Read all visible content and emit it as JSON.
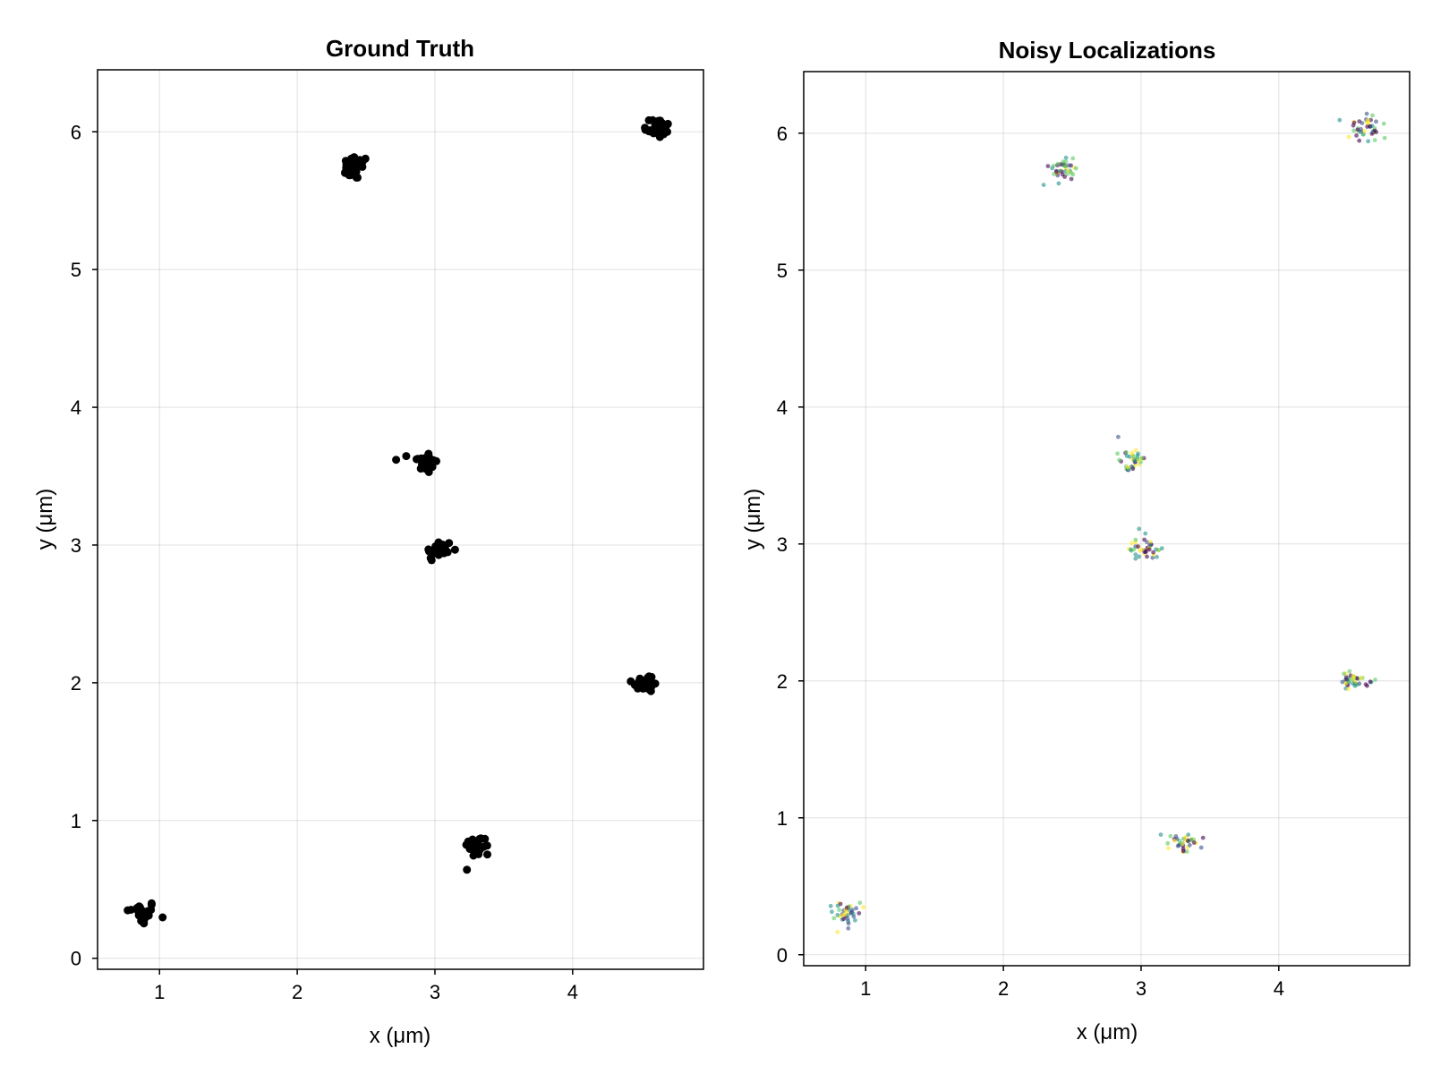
{
  "figure": {
    "panels": [
      {
        "title": "Ground Truth",
        "xlabel": "x (μm)",
        "ylabel": "y (μm)",
        "xlim": [
          0.55,
          4.95
        ],
        "ylim": [
          -0.08,
          6.45
        ],
        "xticks": [
          1,
          2,
          3,
          4
        ],
        "yticks": [
          0,
          1,
          2,
          3,
          4,
          5,
          6
        ],
        "marker_color": "#000000"
      },
      {
        "title": "Noisy Localizations",
        "xlabel": "x (μm)",
        "ylabel": "y (μm)",
        "xlim": [
          0.55,
          4.95
        ],
        "ylim": [
          -0.08,
          6.45
        ],
        "xticks": [
          1,
          2,
          3,
          4
        ],
        "yticks": [
          0,
          1,
          2,
          3,
          4,
          5,
          6
        ],
        "colormap": [
          "#440154",
          "#3b528b",
          "#21918c",
          "#5ec962",
          "#fde725"
        ],
        "marker_opacity": 0.6
      }
    ]
  },
  "chart_data": [
    {
      "type": "scatter",
      "title": "Ground Truth",
      "xlabel": "x (μm)",
      "ylabel": "y (μm)",
      "xlim": [
        0.55,
        4.95
      ],
      "ylim": [
        -0.08,
        6.45
      ],
      "grid": true,
      "clusters": [
        {
          "center": [
            0.87,
            0.33
          ],
          "spread": [
            0.11,
            0.09
          ],
          "points": 26
        },
        {
          "center": [
            2.42,
            5.74
          ],
          "spread": [
            0.1,
            0.09
          ],
          "points": 26
        },
        {
          "center": [
            4.62,
            6.03
          ],
          "spread": [
            0.1,
            0.08
          ],
          "points": 28
        },
        {
          "center": [
            2.92,
            3.6
          ],
          "spread": [
            0.1,
            0.08
          ],
          "points": 26
        },
        {
          "center": [
            3.03,
            2.96
          ],
          "spread": [
            0.1,
            0.08
          ],
          "points": 26
        },
        {
          "center": [
            4.53,
            2.0
          ],
          "spread": [
            0.1,
            0.07
          ],
          "points": 28
        },
        {
          "center": [
            3.31,
            0.81
          ],
          "spread": [
            0.1,
            0.08
          ],
          "points": 26
        }
      ]
    },
    {
      "type": "scatter",
      "title": "Noisy Localizations",
      "xlabel": "x (μm)",
      "ylabel": "y (μm)",
      "xlim": [
        0.55,
        4.95
      ],
      "ylim": [
        -0.08,
        6.45
      ],
      "grid": true,
      "clusters": [
        {
          "center": [
            0.86,
            0.31
          ],
          "spread": [
            0.12,
            0.1
          ],
          "points": 40
        },
        {
          "center": [
            2.42,
            5.74
          ],
          "spread": [
            0.11,
            0.09
          ],
          "points": 40
        },
        {
          "center": [
            4.62,
            6.04
          ],
          "spread": [
            0.12,
            0.09
          ],
          "points": 42
        },
        {
          "center": [
            2.93,
            3.6
          ],
          "spread": [
            0.1,
            0.09
          ],
          "points": 38
        },
        {
          "center": [
            3.03,
            2.97
          ],
          "spread": [
            0.12,
            0.09
          ],
          "points": 42
        },
        {
          "center": [
            4.53,
            2.01
          ],
          "spread": [
            0.12,
            0.08
          ],
          "points": 40
        },
        {
          "center": [
            3.31,
            0.81
          ],
          "spread": [
            0.11,
            0.08
          ],
          "points": 38
        }
      ]
    }
  ]
}
